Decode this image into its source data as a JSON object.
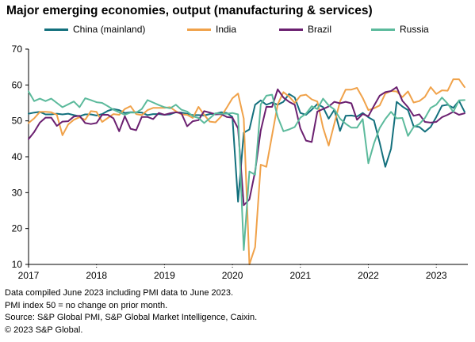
{
  "header": {
    "title": "Major emerging economies, output (manufacturing & services)"
  },
  "footer": {
    "notes": [
      "Data compiled June 2023 including PMI data to June 2023.",
      "PMI index 50 = no change on prior month.",
      "Source: S&P Global PMI, S&P Global Market Intelligence, Caixin.",
      "© 2023 S&P Global."
    ]
  },
  "chart_data": {
    "type": "line",
    "title": "Major emerging economies, output (manufacturing & services)",
    "xlabel": "",
    "ylabel": "",
    "ylim": [
      10,
      70
    ],
    "yticks": [
      10,
      20,
      30,
      40,
      50,
      60,
      70
    ],
    "xlim": [
      "2017-01",
      "2023-06"
    ],
    "xticks": [
      "2017",
      "2018",
      "2019",
      "2020",
      "2021",
      "2022",
      "2023"
    ],
    "grid": false,
    "legend_position": "top",
    "reference_line": 50,
    "series": [
      {
        "name": "China (mainland)",
        "color": "#13707d",
        "values": [
          52,
          52.3,
          52.5,
          51.8,
          51.8,
          52,
          51.8,
          52,
          51.6,
          51.3,
          51.8,
          51.8,
          51.5,
          51.9,
          52.8,
          53.3,
          53.0,
          52.2,
          52.4,
          52.4,
          52.3,
          51.6,
          51.9,
          51.9,
          51.7,
          51.8,
          52.4,
          52.3,
          52.0,
          51.6,
          51.6,
          51.5,
          51.9,
          52.0,
          52.4,
          52.2,
          51.1,
          27.5,
          46.7,
          47.6,
          54.5,
          55.7,
          54.5,
          55.1,
          54.5,
          55.3,
          57.5,
          56.5,
          52.2,
          51.7,
          53.1,
          54.7,
          53.8,
          50.6,
          53.1,
          47.2,
          51.4,
          51.5,
          51.2,
          52.2,
          51.0,
          50.1,
          43.9,
          37.2,
          42.2,
          55.3,
          54.0,
          53.0,
          48.5,
          48.3,
          47.0,
          48.3,
          51.1,
          54.2,
          54.5,
          53.6,
          55.6,
          52.5
        ]
      },
      {
        "name": "India",
        "color": "#f0a24a",
        "values": [
          49.4,
          50.7,
          52.5,
          52.5,
          52.4,
          51.7,
          46.0,
          49.0,
          50.3,
          51.0,
          50.3,
          52.7,
          52.5,
          49.7,
          50.8,
          51.9,
          51.7,
          53.3,
          54.1,
          51.9,
          51.6,
          53.0,
          53.6,
          53.6,
          53.6,
          53.8,
          52.7,
          51.8,
          51.7,
          50.8,
          53.9,
          51.7,
          49.8,
          49.6,
          51.2,
          53.7,
          56.3,
          57.6,
          50.6,
          7.2,
          14.8,
          37.8,
          37.2,
          46.0,
          54.6,
          58.0,
          56.8,
          55.0,
          57.0,
          57.3,
          56.0,
          55.4,
          48.1,
          43.1,
          49.2,
          55.4,
          58.7,
          58.7,
          59.2,
          56.4,
          53.0,
          53.5,
          54.3,
          57.6,
          58.3,
          58.2,
          56.6,
          58.2,
          55.1,
          55.5,
          56.7,
          59.4,
          57.5,
          58.5,
          58.4,
          61.6,
          61.6,
          59.4
        ]
      },
      {
        "name": "Brazil",
        "color": "#6b2070",
        "values": [
          44.9,
          46.9,
          49.5,
          50.9,
          50.9,
          48.6,
          49.8,
          49.9,
          51.2,
          51.4,
          49.4,
          49.1,
          49.4,
          51.7,
          51.7,
          50.7,
          47.1,
          51.3,
          47.8,
          47.4,
          51.1,
          51.1,
          50.5,
          52.2,
          51.7,
          52.1,
          52.4,
          52.1,
          48.5,
          49.9,
          50.2,
          52.7,
          52.3,
          51.8,
          51.9,
          51.1,
          50.9,
          47.9,
          26.5,
          28.1,
          35.9,
          47.3,
          53.9,
          53.9,
          58.8,
          56.5,
          55.3,
          54.5,
          47.9,
          44.5,
          44.1,
          52.6,
          53.3,
          54.0,
          55.3,
          54.9,
          55.3,
          54.9,
          50.3,
          51.9,
          51.3,
          54.2,
          57.0,
          58.0,
          58.3,
          59.4,
          55.6,
          53.8,
          51.4,
          51.8,
          49.7,
          49.5,
          49.7,
          51.0,
          51.7,
          52.5,
          51.7,
          52.1
        ]
      },
      {
        "name": "Russia",
        "color": "#5cba9c",
        "values": [
          58.2,
          55.5,
          56.2,
          55.5,
          56.2,
          55.0,
          53.8,
          54.6,
          55.4,
          53.8,
          56.3,
          55.8,
          55.2,
          55.0,
          54.1,
          53.1,
          52.4,
          51.7,
          52.3,
          52.3,
          53.3,
          55.8,
          55.1,
          54.4,
          53.8,
          53.5,
          54.5,
          53.1,
          52.6,
          51.3,
          50.8,
          49.4,
          50.7,
          52.1,
          52.0,
          52.0,
          52.2,
          51.8,
          14.0,
          35.9,
          35.0,
          54.6,
          57.0,
          57.3,
          51.1,
          47.1,
          47.6,
          48.3,
          50.9,
          52.0,
          54.1,
          53.3,
          56.2,
          54.3,
          53.2,
          50.6,
          49.2,
          48.1,
          48.1,
          50.5,
          38.2,
          43.7,
          48.0,
          50.5,
          52.5,
          50.7,
          50.8,
          45.8,
          48.3,
          49.1,
          50.8,
          53.6,
          54.5,
          56.5,
          54.8,
          52.5,
          55.7,
          55.8
        ]
      }
    ]
  }
}
